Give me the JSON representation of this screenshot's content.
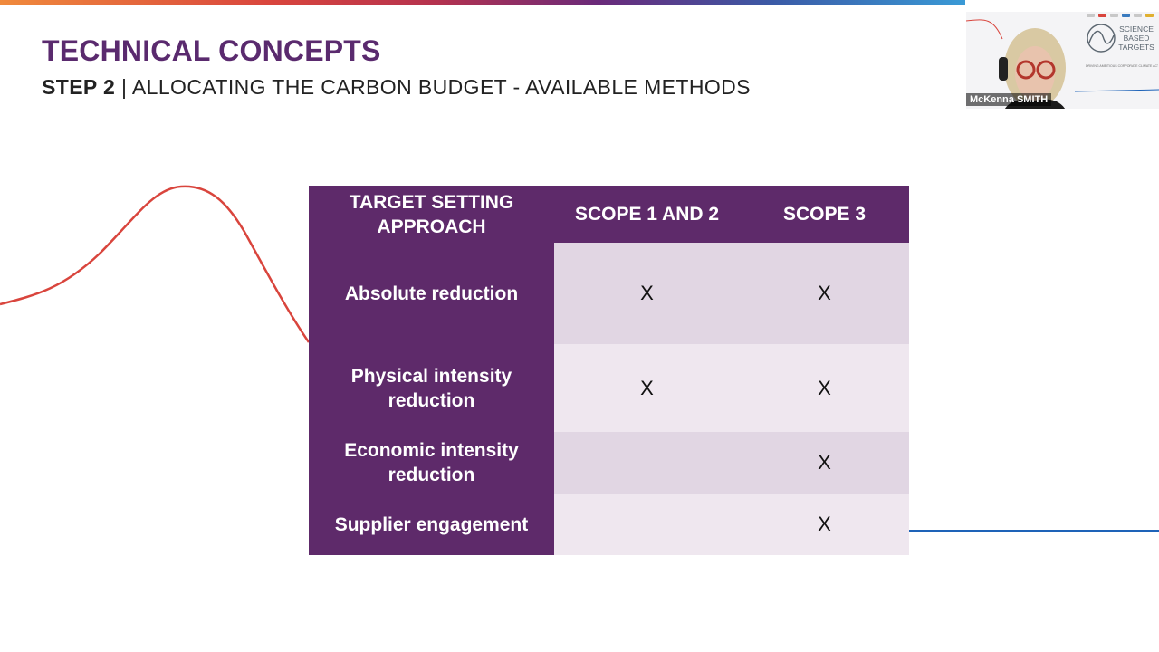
{
  "slide": {
    "title": "TECHNICAL CONCEPTS",
    "subtitle_bold": "STEP 2",
    "subtitle_rest": " | ALLOCATING THE CARBON BUDGET - AVAILABLE METHODS"
  },
  "table": {
    "headers": [
      "TARGET SETTING APPROACH",
      "SCOPE 1 AND 2",
      "SCOPE 3"
    ],
    "rows": [
      {
        "approach": "Absolute reduction",
        "scope12": "X",
        "scope3": "X"
      },
      {
        "approach": "Physical intensity reduction",
        "scope12": "X",
        "scope3": "X"
      },
      {
        "approach": "Economic intensity reduction",
        "scope12": "",
        "scope3": "X"
      },
      {
        "approach": "Supplier engagement",
        "scope12": "",
        "scope3": "X"
      }
    ]
  },
  "video": {
    "participant_name": "McKenna SMITH",
    "logo_text": "SCIENCE BASED TARGETS",
    "logo_tagline": "DRIVING AMBITIOUS CORPORATE CLIMATE ACTION"
  },
  "colors": {
    "accent_purple": "#5e2a6a",
    "title_purple": "#5a2a6e",
    "row_shade_dark": "#e1d6e3",
    "row_shade_light": "#efe7ef",
    "curve_red": "#d9453d",
    "line_blue": "#1e63b8"
  }
}
